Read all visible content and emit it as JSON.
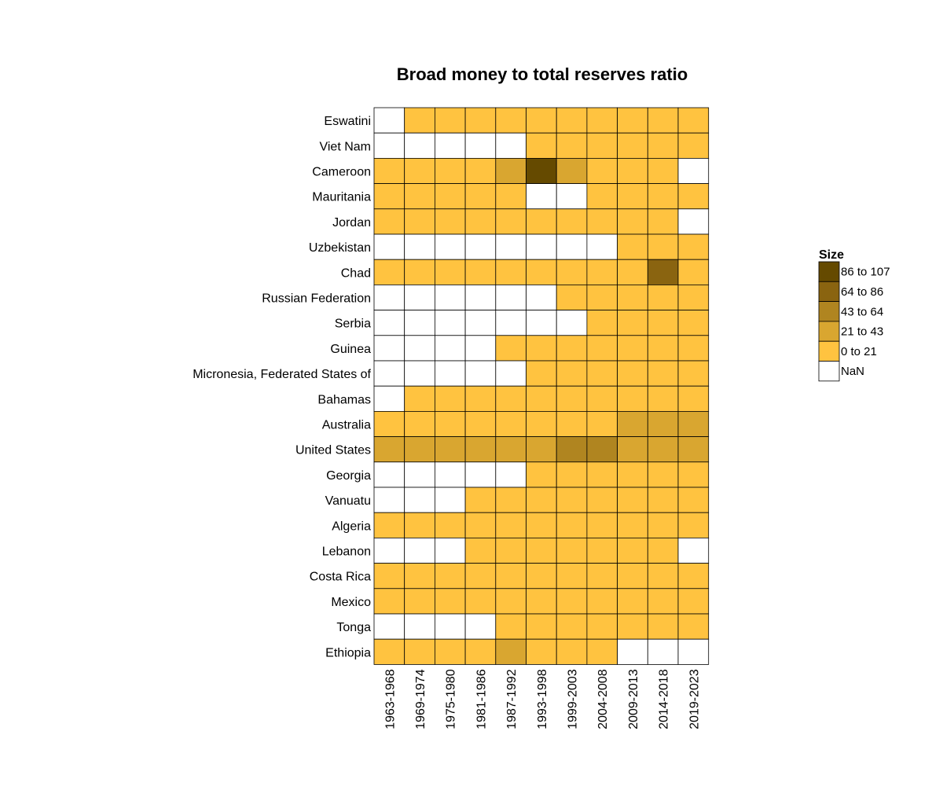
{
  "chart_data": {
    "type": "heatmap",
    "title": "Broad money to total reserves ratio",
    "rows": [
      "Eswatini",
      "Viet Nam",
      "Cameroon",
      "Mauritania",
      "Jordan",
      "Uzbekistan",
      "Chad",
      "Russian Federation",
      "Serbia",
      "Guinea",
      "Micronesia, Federated States of",
      "Bahamas",
      "Australia",
      "United States",
      "Georgia",
      "Vanuatu",
      "Algeria",
      "Lebanon",
      "Costa Rica",
      "Mexico",
      "Tonga",
      "Ethiopia"
    ],
    "columns": [
      "1963-1968",
      "1969-1974",
      "1975-1980",
      "1981-1986",
      "1987-1992",
      "1993-1998",
      "1999-2003",
      "2004-2008",
      "2009-2013",
      "2014-2018",
      "2019-2023"
    ],
    "values": [
      [
        null,
        10,
        10,
        10,
        10,
        10,
        10,
        10,
        10,
        10,
        10
      ],
      [
        null,
        null,
        null,
        null,
        null,
        10,
        10,
        10,
        10,
        10,
        10
      ],
      [
        10,
        10,
        10,
        10,
        30,
        100,
        30,
        10,
        10,
        10,
        null
      ],
      [
        10,
        10,
        10,
        10,
        10,
        null,
        null,
        10,
        10,
        10,
        10
      ],
      [
        10,
        10,
        10,
        10,
        10,
        10,
        10,
        10,
        10,
        10,
        null
      ],
      [
        null,
        null,
        null,
        null,
        null,
        null,
        null,
        null,
        10,
        10,
        10
      ],
      [
        10,
        10,
        10,
        10,
        10,
        10,
        10,
        10,
        10,
        70,
        10
      ],
      [
        null,
        null,
        null,
        null,
        null,
        null,
        10,
        10,
        10,
        10,
        10
      ],
      [
        null,
        null,
        null,
        null,
        null,
        null,
        null,
        10,
        10,
        10,
        10
      ],
      [
        null,
        null,
        null,
        null,
        10,
        10,
        10,
        10,
        10,
        10,
        10
      ],
      [
        null,
        null,
        null,
        null,
        null,
        10,
        10,
        10,
        10,
        10,
        10
      ],
      [
        null,
        10,
        10,
        10,
        10,
        10,
        10,
        10,
        10,
        10,
        10
      ],
      [
        10,
        10,
        10,
        10,
        10,
        10,
        10,
        10,
        25,
        25,
        25
      ],
      [
        30,
        30,
        30,
        30,
        30,
        30,
        50,
        50,
        30,
        30,
        30
      ],
      [
        null,
        null,
        null,
        null,
        null,
        10,
        10,
        10,
        10,
        10,
        10
      ],
      [
        null,
        null,
        null,
        10,
        10,
        10,
        10,
        10,
        10,
        10,
        10
      ],
      [
        10,
        10,
        10,
        10,
        10,
        10,
        10,
        10,
        10,
        10,
        10
      ],
      [
        null,
        null,
        null,
        10,
        10,
        10,
        10,
        10,
        10,
        10,
        null
      ],
      [
        10,
        10,
        10,
        10,
        10,
        10,
        10,
        10,
        10,
        10,
        10
      ],
      [
        10,
        10,
        10,
        10,
        10,
        10,
        10,
        10,
        10,
        10,
        10
      ],
      [
        null,
        null,
        null,
        null,
        10,
        10,
        10,
        10,
        10,
        10,
        10
      ],
      [
        10,
        10,
        10,
        10,
        30,
        10,
        10,
        10,
        null,
        null,
        null
      ]
    ],
    "legend": {
      "title": "Size",
      "placement": "right",
      "items": [
        {
          "label": "86 to 107",
          "min": 86,
          "max": 107,
          "color": "#654a00"
        },
        {
          "label": "64 to 86",
          "min": 64,
          "max": 86,
          "color": "#8a6410"
        },
        {
          "label": "43 to 64",
          "min": 43,
          "max": 64,
          "color": "#b08520"
        },
        {
          "label": "21 to 43",
          "min": 21,
          "max": 43,
          "color": "#d9a630"
        },
        {
          "label": "0 to 21",
          "min": 0,
          "max": 21,
          "color": "#ffc340"
        },
        {
          "label": "NaN",
          "color": "#ffffff"
        }
      ]
    },
    "grid": true
  }
}
